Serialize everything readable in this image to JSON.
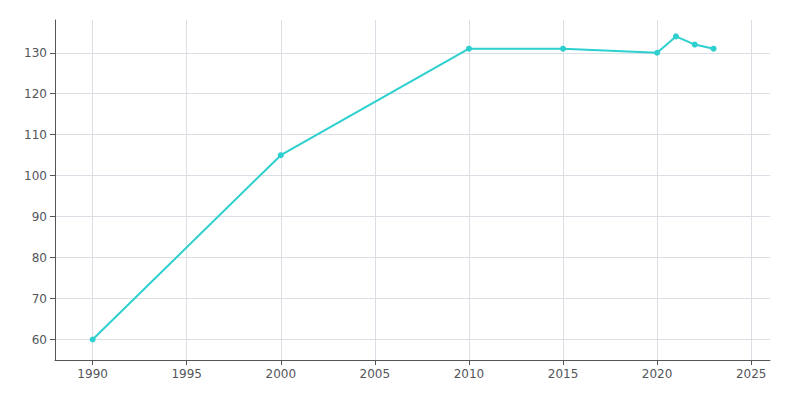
{
  "chart_data": {
    "type": "line",
    "x": [
      1990,
      2000,
      2010,
      2015,
      2020,
      2021,
      2022,
      2023
    ],
    "values": [
      60,
      105,
      131,
      131,
      130,
      134,
      132,
      131
    ],
    "color": "#2DCFCF",
    "marker": "circle",
    "xlim": [
      1988,
      2026
    ],
    "ylim": [
      55,
      138
    ],
    "xticks": [
      1990,
      1995,
      2000,
      2005,
      2010,
      2015,
      2020,
      2025
    ],
    "yticks": [
      60,
      70,
      80,
      90,
      100,
      110,
      120,
      130
    ],
    "grid": true
  }
}
